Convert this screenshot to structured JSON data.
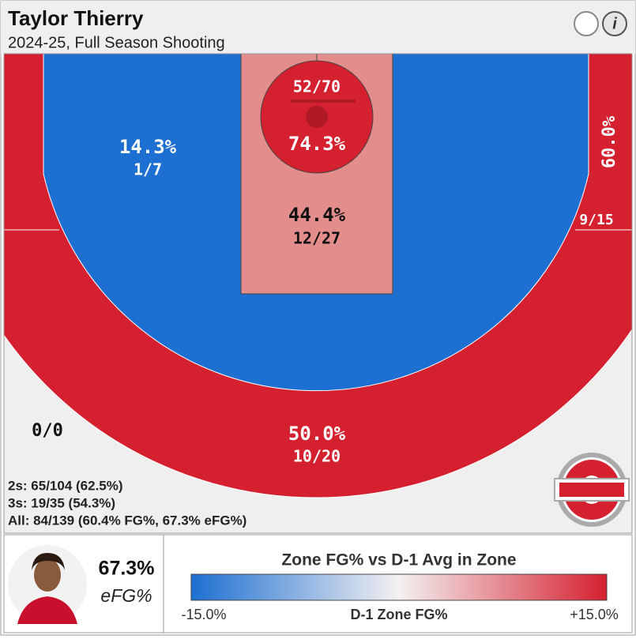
{
  "header": {
    "title": "Taylor Thierry",
    "subtitle": "2024-25, Full Season Shooting"
  },
  "zones": {
    "restricted": {
      "pct": "74.3%",
      "made": "52/70"
    },
    "paint": {
      "pct": "44.4%",
      "made": "12/27"
    },
    "left_midrange": {
      "pct": "14.3%",
      "made": "1/7"
    },
    "right_corner_three": {
      "pct": "60.0%",
      "made": "9/15"
    },
    "left_corner_three": {
      "made": "0/0"
    },
    "above_break_three": {
      "pct": "50.0%",
      "made": "10/20"
    }
  },
  "stats": [
    "2s: 65/104 (62.5%)",
    "3s: 19/35 (54.3%)",
    "All: 84/139 (60.4% FG%, 67.3% eFG%)"
  ],
  "player": {
    "efg": "67.3%",
    "efg_label": "eFG%"
  },
  "legend": {
    "title": "Zone FG% vs D-1 Avg in Zone",
    "min_label": "-15.0%",
    "axis_label": "D-1 Zone FG%",
    "max_label": "+15.0%"
  }
}
